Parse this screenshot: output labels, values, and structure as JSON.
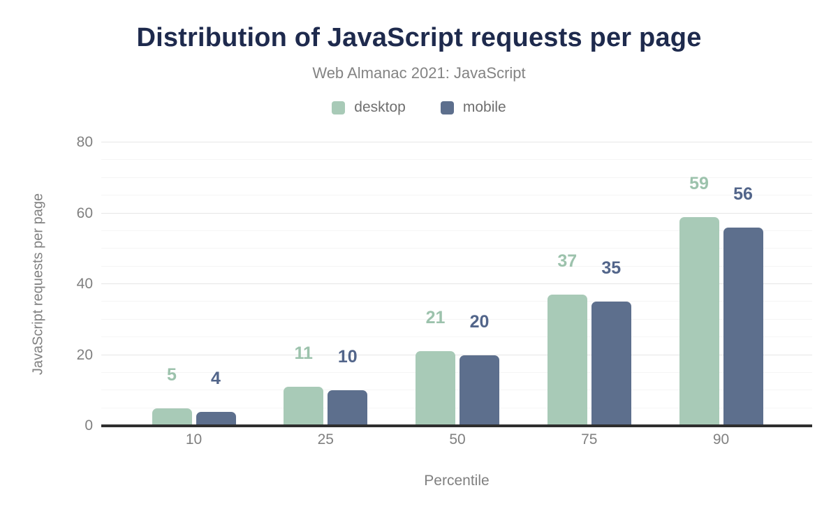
{
  "chart_data": {
    "type": "bar",
    "title": "Distribution of JavaScript requests per page",
    "subtitle": "Web Almanac 2021: JavaScript",
    "xlabel": "Percentile",
    "ylabel": "JavaScript requests per page",
    "categories": [
      "10",
      "25",
      "50",
      "75",
      "90"
    ],
    "series": [
      {
        "name": "desktop",
        "color": "#a8cab7",
        "label_color": "#9cc2ac",
        "values": [
          5,
          11,
          21,
          37,
          59
        ]
      },
      {
        "name": "mobile",
        "color": "#5d6f8d",
        "label_color": "#52658a",
        "values": [
          4,
          10,
          20,
          35,
          56
        ]
      }
    ],
    "ylim": [
      0,
      80
    ],
    "yticks": [
      0,
      20,
      40,
      60,
      80
    ],
    "minor_tick_step": 5,
    "grid": true,
    "legend_position": "top"
  },
  "colors": {
    "title": "#1e2a4d",
    "subtitle": "#838383",
    "axis_text": "#808080",
    "legend_text": "#6f6f6f",
    "gridline_major": "#e6e6e6",
    "gridline_minor": "#f5f5f5",
    "axis_line": "#2e2e2e",
    "background": "#ffffff"
  }
}
